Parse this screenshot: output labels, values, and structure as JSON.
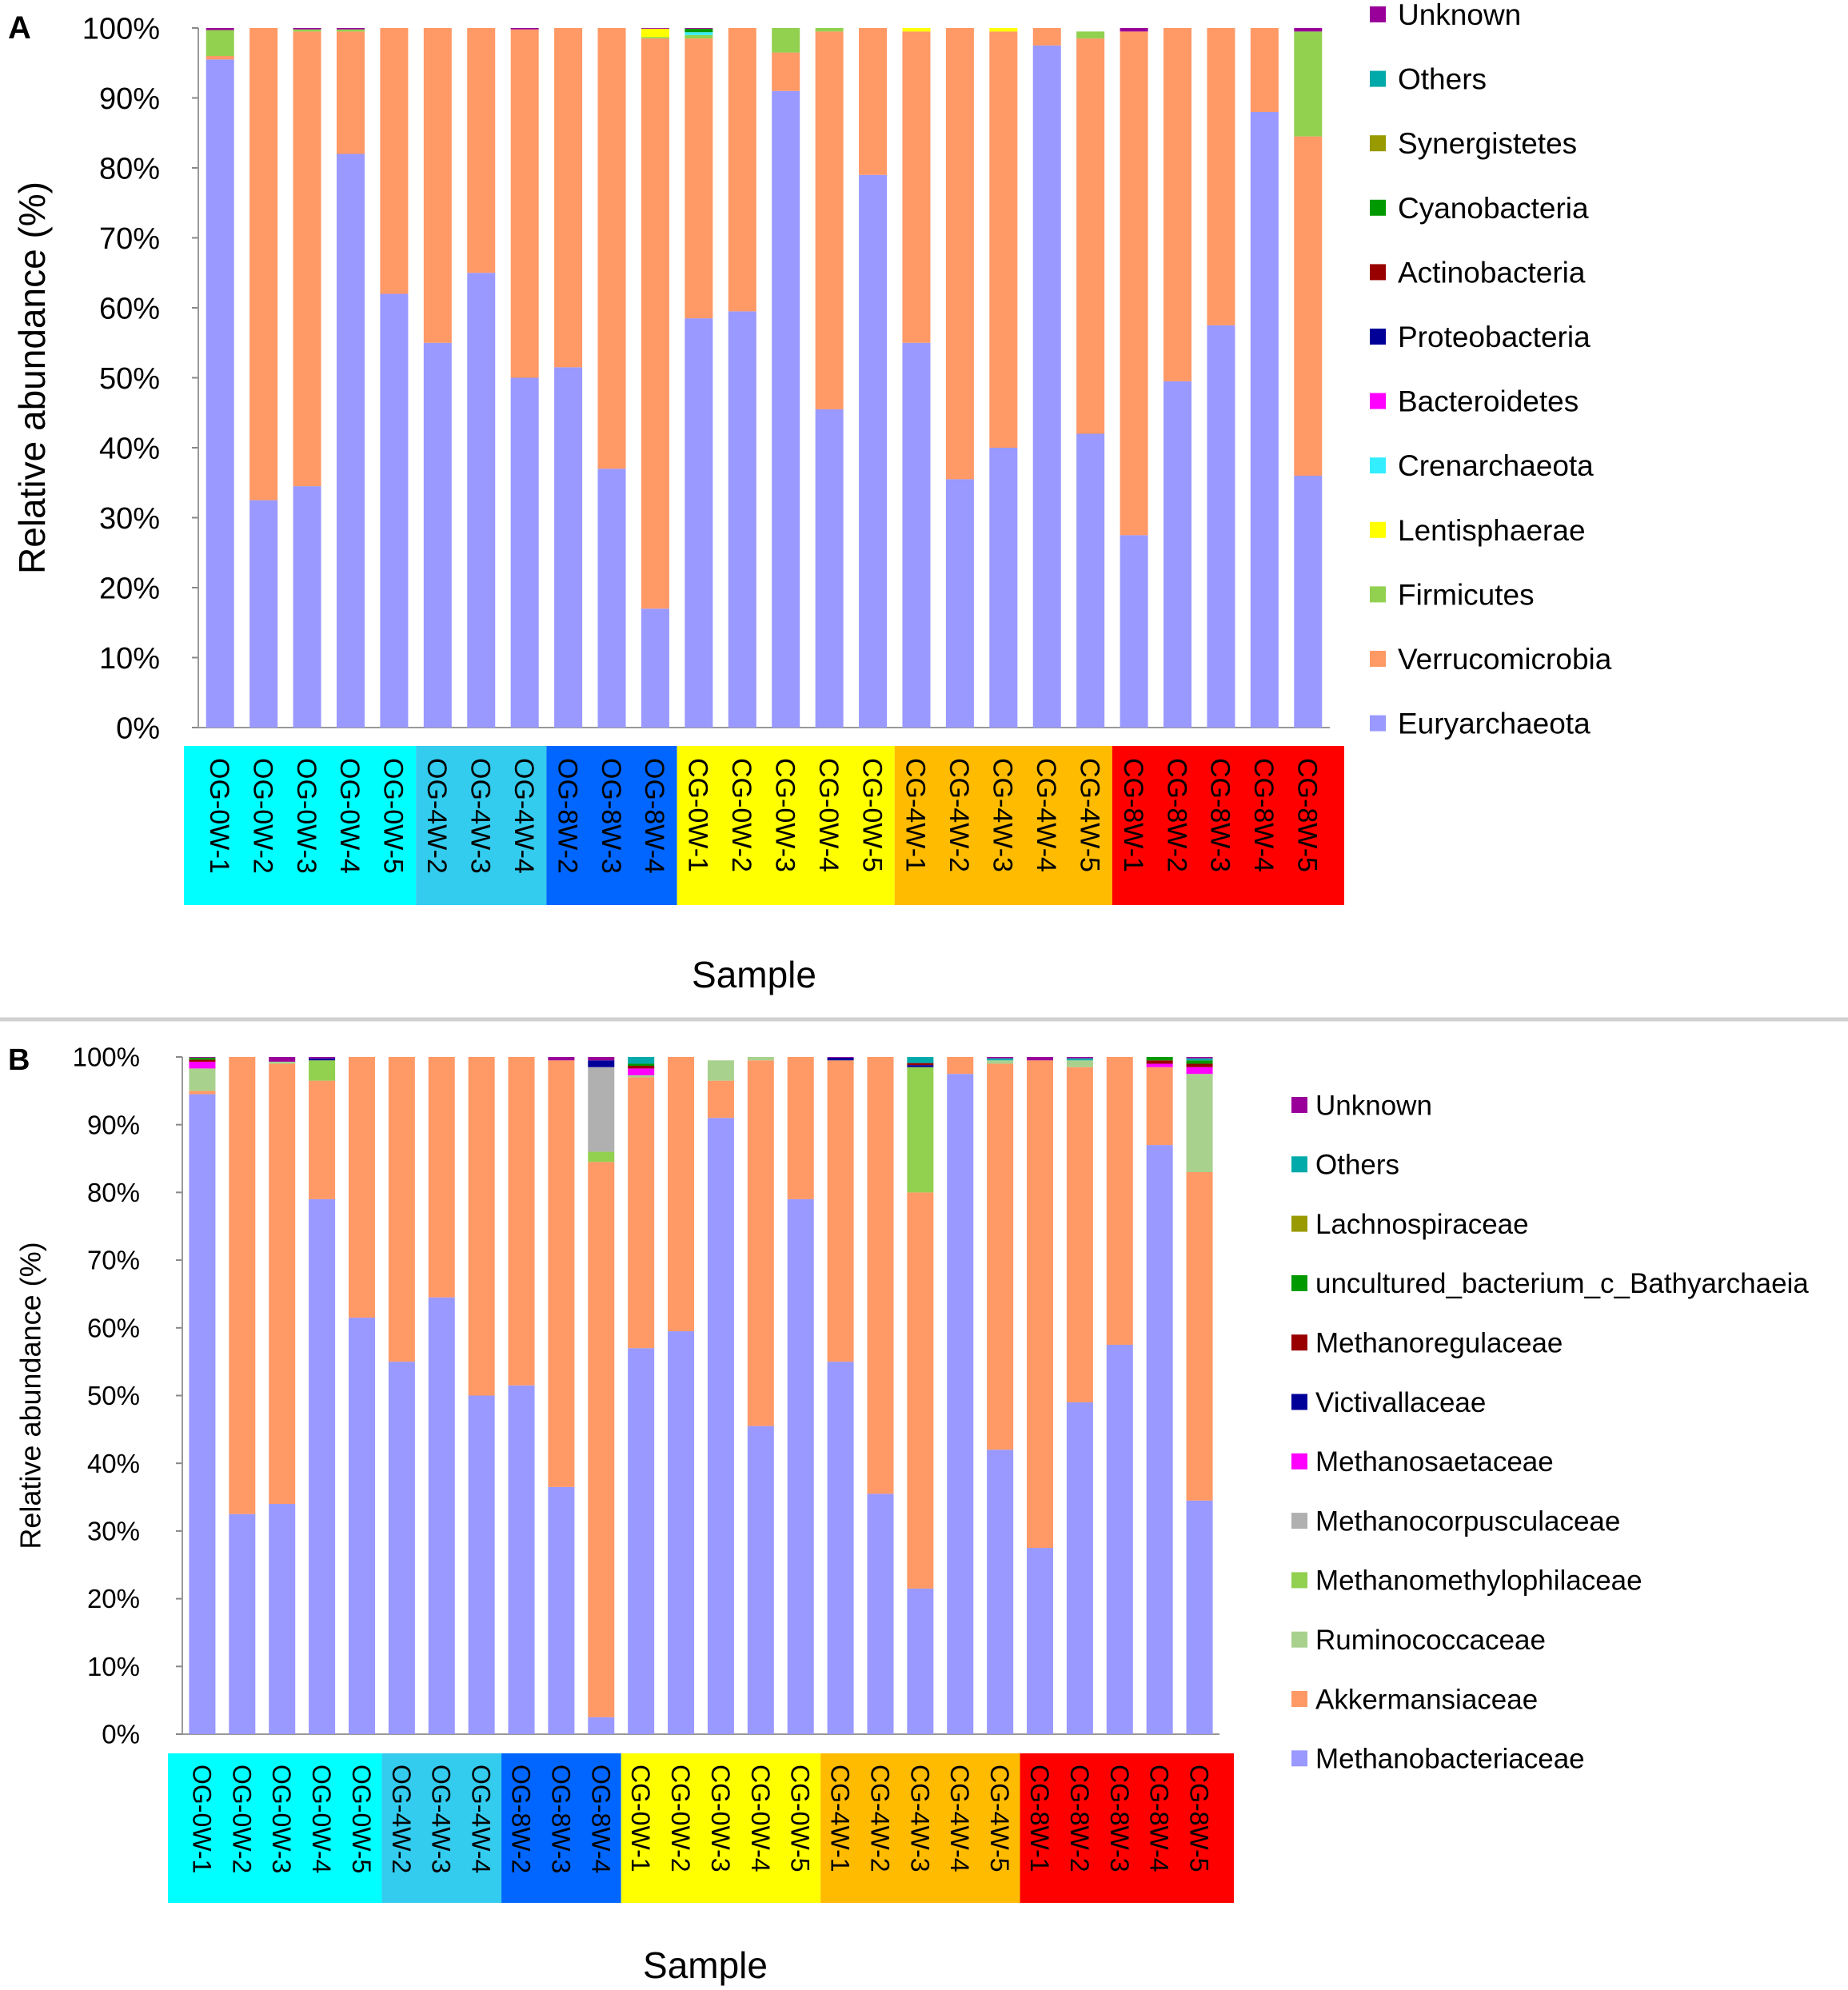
{
  "figure": {
    "divider_color": "#d0d0d0"
  },
  "colors": {
    "group_OG0": "#00ffff",
    "group_OG4": "#33ccee",
    "group_OG8": "#0066ff",
    "group_CG0": "#ffff00",
    "group_CG4": "#ffbb00",
    "group_CG8": "#ff0000"
  },
  "chart_data": [
    {
      "type": "bar",
      "stacked": true,
      "panel_label": "A",
      "ylabel": "Relative abundance (%)",
      "xlabel": "Sample",
      "ylim": [
        0,
        100
      ],
      "yticks": [
        "0%",
        "10%",
        "20%",
        "30%",
        "40%",
        "50%",
        "60%",
        "70%",
        "80%",
        "90%",
        "100%"
      ],
      "categories": [
        "OG-0W-1",
        "OG-0W-2",
        "OG-0W-3",
        "OG-0W-4",
        "OG-0W-5",
        "OG-4W-2",
        "OG-4W-3",
        "OG-4W-4",
        "OG-8W-2",
        "OG-8W-3",
        "OG-8W-4",
        "CG-0W-1",
        "CG-0W-2",
        "CG-0W-3",
        "CG-0W-4",
        "CG-0W-5",
        "CG-4W-1",
        "CG-4W-2",
        "CG-4W-3",
        "CG-4W-4",
        "CG-4W-5",
        "CG-8W-1",
        "CG-8W-2",
        "CG-8W-3",
        "CG-8W-4",
        "CG-8W-5"
      ],
      "category_groups": [
        "OG0",
        "OG0",
        "OG0",
        "OG0",
        "OG0",
        "OG4",
        "OG4",
        "OG4",
        "OG8",
        "OG8",
        "OG8",
        "CG0",
        "CG0",
        "CG0",
        "CG0",
        "CG0",
        "CG4",
        "CG4",
        "CG4",
        "CG4",
        "CG4",
        "CG8",
        "CG8",
        "CG8",
        "CG8",
        "CG8"
      ],
      "series": [
        {
          "name": "Euryarchaeota",
          "color": "#9999ff",
          "values": [
            95.5,
            32.5,
            34.5,
            82,
            62,
            55,
            65,
            50,
            51.5,
            37,
            17,
            58.5,
            59.5,
            91,
            45.5,
            79,
            55,
            35.5,
            40,
            97.5,
            42,
            27.5,
            49.5,
            57.5,
            88,
            36
          ]
        },
        {
          "name": "Verrucomicrobia",
          "color": "#ff9966",
          "values": [
            0.5,
            67.5,
            65,
            17.5,
            38,
            45,
            35,
            49.8,
            48.5,
            63,
            81.5,
            40,
            40.5,
            5.5,
            54,
            21,
            44.5,
            64.5,
            59.5,
            2.5,
            56.5,
            72,
            50.5,
            42.5,
            12,
            48.5
          ]
        },
        {
          "name": "Firmicutes",
          "color": "#92d050",
          "values": [
            3.7,
            0,
            0.3,
            0.3,
            0,
            0,
            0,
            0,
            0,
            0,
            0.2,
            0.5,
            0,
            3.5,
            0.5,
            0,
            0,
            0,
            0,
            0,
            1,
            0,
            0,
            0,
            0,
            15
          ]
        },
        {
          "name": "Lentisphaerae",
          "color": "#ffff00",
          "values": [
            0,
            0,
            0,
            0,
            0,
            0,
            0,
            0,
            0,
            0,
            1.2,
            0,
            0,
            0,
            0,
            0,
            0.5,
            0,
            0.5,
            0,
            0,
            0,
            0,
            0,
            0,
            0
          ]
        },
        {
          "name": "Crenarchaeota",
          "color": "#33eeff",
          "values": [
            0,
            0,
            0,
            0,
            0,
            0,
            0,
            0,
            0,
            0,
            0,
            0.4,
            0,
            0,
            0,
            0,
            0,
            0,
            0,
            0,
            0,
            0,
            0,
            0,
            0,
            0
          ]
        },
        {
          "name": "Bacteroidetes",
          "color": "#ff00ff",
          "values": [
            0,
            0,
            0,
            0,
            0,
            0,
            0,
            0,
            0,
            0,
            0,
            0,
            0,
            0,
            0,
            0,
            0,
            0,
            0,
            0,
            0,
            0,
            0,
            0,
            0,
            0
          ]
        },
        {
          "name": "Proteobacteria",
          "color": "#000099",
          "values": [
            0,
            0,
            0,
            0,
            0,
            0,
            0,
            0,
            0,
            0,
            0,
            0,
            0,
            0,
            0,
            0,
            0,
            0,
            0,
            0,
            0,
            0,
            0,
            0,
            0,
            0
          ]
        },
        {
          "name": "Actinobacteria",
          "color": "#990000",
          "values": [
            0,
            0,
            0,
            0,
            0,
            0,
            0,
            0,
            0,
            0,
            0,
            0,
            0,
            0,
            0,
            0,
            0,
            0,
            0,
            0,
            0,
            0,
            0,
            0,
            0,
            0
          ]
        },
        {
          "name": "Cyanobacteria",
          "color": "#009900",
          "values": [
            0,
            0,
            0,
            0,
            0,
            0,
            0,
            0,
            0,
            0,
            0,
            0.5,
            0,
            0,
            0,
            0,
            0,
            0,
            0,
            0,
            0,
            0,
            0,
            0,
            0,
            0
          ]
        },
        {
          "name": "Synergistetes",
          "color": "#999900",
          "values": [
            0,
            0,
            0,
            0,
            0,
            0,
            0,
            0,
            0,
            0,
            0,
            0,
            0,
            0,
            0,
            0,
            0,
            0,
            0,
            0,
            0,
            0,
            0,
            0,
            0,
            0
          ]
        },
        {
          "name": "Others",
          "color": "#00aaaa",
          "values": [
            0,
            0,
            0,
            0,
            0,
            0,
            0,
            0,
            0,
            0,
            0,
            0,
            0,
            0,
            0,
            0,
            0,
            0,
            0,
            0,
            0,
            0,
            0,
            0,
            0,
            0
          ]
        },
        {
          "name": "Unknown",
          "color": "#990099",
          "values": [
            0.3,
            0,
            0.2,
            0.2,
            0,
            0,
            0,
            0.2,
            0,
            0,
            0.1,
            0.1,
            0,
            0,
            0,
            0,
            0,
            0,
            0,
            0,
            0,
            0.5,
            0,
            0,
            0,
            0.5
          ]
        }
      ],
      "legend_order": [
        "Unknown",
        "Others",
        "Synergistetes",
        "Cyanobacteria",
        "Actinobacteria",
        "Proteobacteria",
        "Bacteroidetes",
        "Crenarchaeota",
        "Lentisphaerae",
        "Firmicutes",
        "Verrucomicrobia",
        "Euryarchaeota"
      ],
      "legend_placement": "right"
    },
    {
      "type": "bar",
      "stacked": true,
      "panel_label": "B",
      "ylabel": "Relative abundance (%)",
      "xlabel": "Sample",
      "ylim": [
        0,
        100
      ],
      "yticks": [
        "0%",
        "10%",
        "20%",
        "30%",
        "40%",
        "50%",
        "60%",
        "70%",
        "80%",
        "90%",
        "100%"
      ],
      "categories": [
        "OG-0W-1",
        "OG-0W-2",
        "OG-0W-3",
        "OG-0W-4",
        "OG-0W-5",
        "OG-4W-2",
        "OG-4W-3",
        "OG-4W-4",
        "OG-8W-2",
        "OG-8W-3",
        "OG-8W-4",
        "CG-0W-1",
        "CG-0W-2",
        "CG-0W-3",
        "CG-0W-4",
        "CG-0W-5",
        "CG-4W-1",
        "CG-4W-2",
        "CG-4W-3",
        "CG-4W-4",
        "CG-4W-5",
        "CG-8W-1",
        "CG-8W-2",
        "CG-8W-3",
        "CG-8W-4",
        "CG-8W-5"
      ],
      "category_groups": [
        "OG0",
        "OG0",
        "OG0",
        "OG0",
        "OG0",
        "OG4",
        "OG4",
        "OG4",
        "OG8",
        "OG8",
        "OG8",
        "CG0",
        "CG0",
        "CG0",
        "CG0",
        "CG0",
        "CG4",
        "CG4",
        "CG4",
        "CG4",
        "CG4",
        "CG8",
        "CG8",
        "CG8",
        "CG8",
        "CG8"
      ],
      "series": [
        {
          "name": "Methanobacteriaceae",
          "color": "#9999ff",
          "values": [
            94.5,
            32.5,
            34,
            79,
            61.5,
            55,
            64.5,
            50,
            51.5,
            36.5,
            2.5,
            57,
            59.5,
            91,
            45.5,
            79,
            55,
            35.5,
            21.5,
            97.5,
            42,
            27.5,
            49,
            57.5,
            87,
            34.5
          ]
        },
        {
          "name": "Akkermansiaceae",
          "color": "#ff9966",
          "values": [
            0.5,
            67.5,
            65,
            17.5,
            38.5,
            45,
            35.5,
            50,
            48.5,
            63,
            82,
            40,
            40.5,
            5.5,
            54,
            21,
            44.5,
            64.5,
            58.5,
            2.5,
            57,
            72,
            49.5,
            42.5,
            11.5,
            48.5
          ]
        },
        {
          "name": "Ruminococcaceae",
          "color": "#a9d18e",
          "values": [
            3.3,
            0,
            0.3,
            0,
            0,
            0,
            0,
            0,
            0,
            0,
            0,
            0.3,
            0,
            3,
            0.5,
            0,
            0,
            0,
            0,
            0,
            0.5,
            0,
            1,
            0,
            0,
            14.5
          ]
        },
        {
          "name": "Methanomethylophilaceae",
          "color": "#92d050",
          "values": [
            0,
            0,
            0,
            3,
            0,
            0,
            0,
            0,
            0,
            0,
            1.5,
            0,
            0,
            0,
            0,
            0,
            0,
            0,
            18.5,
            0,
            0,
            0,
            0,
            0,
            0,
            0
          ]
        },
        {
          "name": "Methanocorpusculaceae",
          "color": "#b0b0b0",
          "values": [
            0,
            0,
            0,
            0,
            0,
            0,
            0,
            0,
            0,
            0,
            12.5,
            0,
            0,
            0,
            0,
            0,
            0,
            0,
            0,
            0,
            0,
            0,
            0,
            0,
            0,
            0
          ]
        },
        {
          "name": "Methanosaetaceae",
          "color": "#ff00ff",
          "values": [
            1,
            0,
            0,
            0,
            0,
            0,
            0,
            0,
            0,
            0,
            0,
            1,
            0,
            0,
            0,
            0,
            0,
            0,
            0,
            0,
            0,
            0,
            0,
            0,
            0.5,
            1
          ]
        },
        {
          "name": "Victivallaceae",
          "color": "#000099",
          "values": [
            0,
            0,
            0,
            0.3,
            0,
            0,
            0,
            0,
            0,
            0,
            1,
            0,
            0,
            0,
            0,
            0,
            0.4,
            0,
            0.3,
            0,
            0,
            0,
            0,
            0,
            0,
            0
          ]
        },
        {
          "name": "Methanoregulaceae",
          "color": "#990000",
          "values": [
            0.3,
            0,
            0,
            0,
            0,
            0,
            0,
            0,
            0,
            0,
            0,
            0.4,
            0,
            0,
            0,
            0,
            0,
            0,
            0.3,
            0,
            0,
            0,
            0,
            0,
            0.5,
            0.5
          ]
        },
        {
          "name": "uncultured_bacterium_c_Bathyarchaeia",
          "color": "#009900",
          "values": [
            0.3,
            0,
            0,
            0,
            0,
            0,
            0,
            0,
            0,
            0,
            0,
            0.3,
            0,
            0,
            0,
            0,
            0,
            0,
            0,
            0,
            0,
            0,
            0,
            0,
            0.5,
            0.5
          ]
        },
        {
          "name": "Lachnospiraceae",
          "color": "#999900",
          "values": [
            0,
            0,
            0,
            0,
            0,
            0,
            0,
            0,
            0,
            0,
            0,
            0,
            0,
            0,
            0,
            0,
            0,
            0,
            0,
            0,
            0,
            0,
            0,
            0,
            0,
            0
          ]
        },
        {
          "name": "Others",
          "color": "#00aaaa",
          "values": [
            0,
            0,
            0,
            0,
            0,
            0,
            0,
            0,
            0,
            0,
            0,
            1,
            0,
            0,
            0,
            0,
            0,
            0,
            1,
            0,
            0.3,
            0,
            0.3,
            0,
            0,
            0.3
          ]
        },
        {
          "name": "Unknown",
          "color": "#990099",
          "values": [
            0.1,
            0,
            0.7,
            0.2,
            0,
            0,
            0,
            0,
            0,
            0.5,
            0.5,
            0,
            0,
            0,
            0,
            0,
            0.1,
            0,
            0,
            0,
            0.2,
            0.5,
            0.2,
            0,
            0,
            0.2
          ]
        }
      ],
      "legend_order": [
        "Unknown",
        "Others",
        "Lachnospiraceae",
        "uncultured_bacterium_c_Bathyarchaeia",
        "Methanoregulaceae",
        "Victivallaceae",
        "Methanosaetaceae",
        "Methanocorpusculaceae",
        "Methanomethylophilaceae",
        "Ruminococcaceae",
        "Akkermansiaceae",
        "Methanobacteriaceae"
      ],
      "legend_placement": "right"
    }
  ]
}
